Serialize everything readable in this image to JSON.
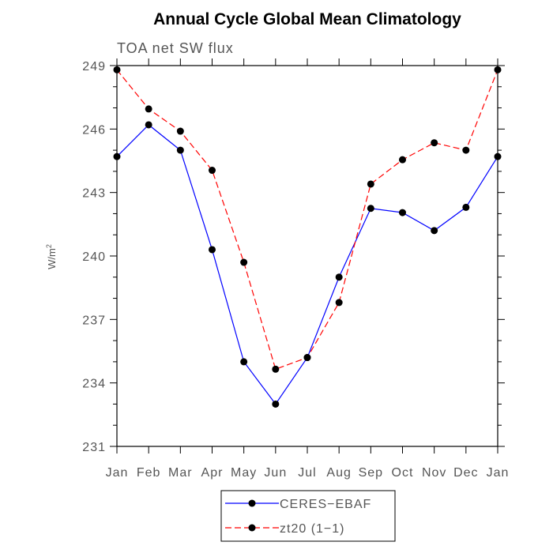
{
  "chart_data": {
    "type": "line",
    "title": "Annual Cycle Global Mean Climatology",
    "subtitle": "TOA net SW flux",
    "ylabel": "W/m",
    "ylabel_superscript": "2",
    "xlabel": "",
    "categories": [
      "Jan",
      "Feb",
      "Mar",
      "Apr",
      "May",
      "Jun",
      "Jul",
      "Aug",
      "Sep",
      "Oct",
      "Nov",
      "Dec",
      "Jan"
    ],
    "yticks": [
      "249",
      "246",
      "243",
      "240",
      "237",
      "234",
      "231"
    ],
    "ylim": [
      231,
      249
    ],
    "legend_placement": "bottom-center",
    "series": [
      {
        "name": "CERES−EBAF",
        "color": "#0000ff",
        "line_style": "solid",
        "marker": "filled-circle",
        "values": [
          244.7,
          246.2,
          245.0,
          240.3,
          235.0,
          233.0,
          235.2,
          239.0,
          242.25,
          242.05,
          241.2,
          242.3,
          244.7
        ]
      },
      {
        "name": "zt20 (1−1)",
        "color": "#ff0000",
        "line_style": "dashed",
        "marker": "filled-circle",
        "values": [
          248.8,
          246.95,
          245.9,
          244.05,
          239.7,
          234.65,
          235.2,
          237.8,
          243.4,
          244.55,
          245.35,
          245.0,
          248.8
        ]
      }
    ]
  }
}
